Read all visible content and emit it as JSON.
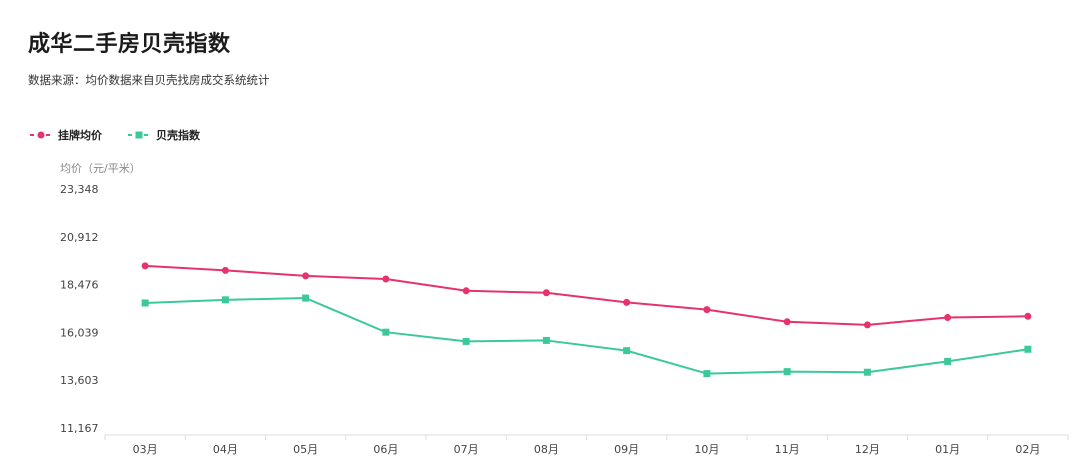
{
  "header": {
    "title": "成华二手房贝壳指数",
    "subtitle": "数据来源：均价数据来自贝壳找房成交系统统计"
  },
  "colors": {
    "listing": "#e6336c",
    "index": "#3cc99a",
    "axis": "#dddddd",
    "tick_text": "#444444"
  },
  "chart_data": {
    "type": "line",
    "ylabel": "均价（元/平米）",
    "categories": [
      "03月",
      "04月",
      "05月",
      "06月",
      "07月",
      "08月",
      "09月",
      "10月",
      "11月",
      "12月",
      "01月",
      "02月"
    ],
    "yticks": [
      "23,348",
      "20,912",
      "18,476",
      "16,039",
      "13,603",
      "11,167"
    ],
    "ylim": [
      11167,
      23348
    ],
    "legend_position": "top-left",
    "series": [
      {
        "name": "挂牌均价",
        "marker": "circle",
        "color": "#e6336c",
        "values": [
          19430,
          19200,
          18920,
          18760,
          18160,
          18060,
          17570,
          17200,
          16580,
          16420,
          16800,
          16860
        ]
      },
      {
        "name": "贝壳指数",
        "marker": "square",
        "color": "#3cc99a",
        "values": [
          17540,
          17700,
          17790,
          16050,
          15580,
          15630,
          15110,
          13940,
          14040,
          14010,
          14560,
          15180
        ]
      }
    ]
  }
}
